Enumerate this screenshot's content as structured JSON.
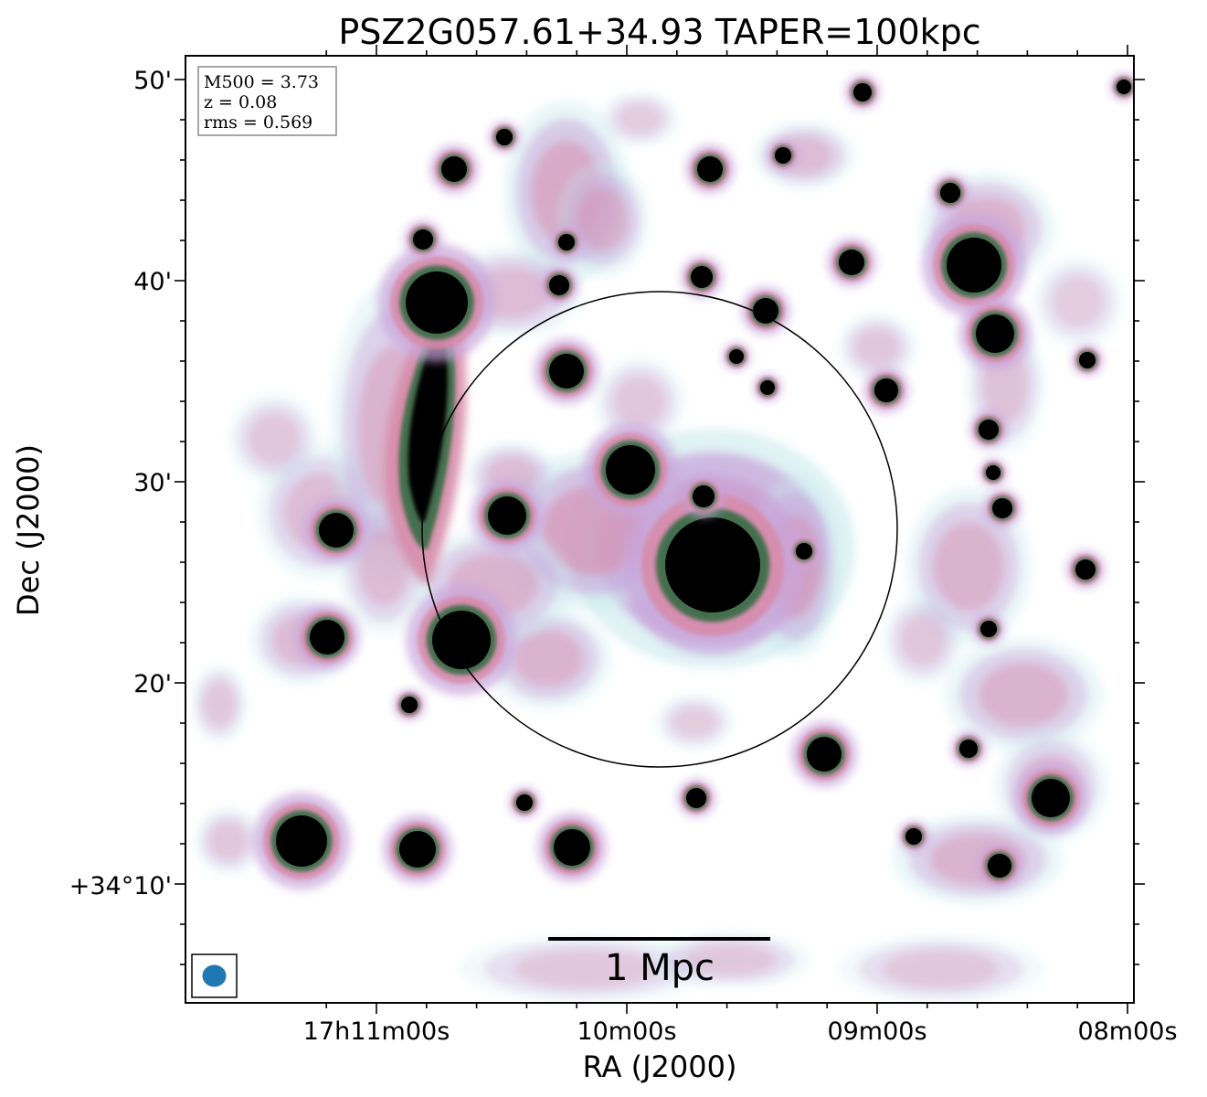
{
  "chart_data": {
    "type": "heatmap",
    "title": "PSZ2G057.61+34.93 TAPER=100kpc",
    "xlabel": "RA (J2000)",
    "ylabel": "Dec (J2000)",
    "x_ticks": [
      "17h11m00s",
      "10m00s",
      "09m00s",
      "08m00s"
    ],
    "y_ticks": [
      "50'",
      "40'",
      "30'",
      "20'",
      "+34°10'"
    ],
    "info": {
      "m500": "M500 = 3.73",
      "z": "z = 0.08",
      "rms": "rms = 0.569"
    },
    "scale_bar_label": "1 Mpc",
    "colormap": "cubehelix-like (white to pink, green, black)",
    "beam_color": "#1f77b4",
    "colors": {
      "low": "#c6e8ec",
      "mid_low": "#c9a6dc",
      "mid": "#d88aa8",
      "mid_high": "#3d6e48",
      "high": "#000000"
    }
  }
}
